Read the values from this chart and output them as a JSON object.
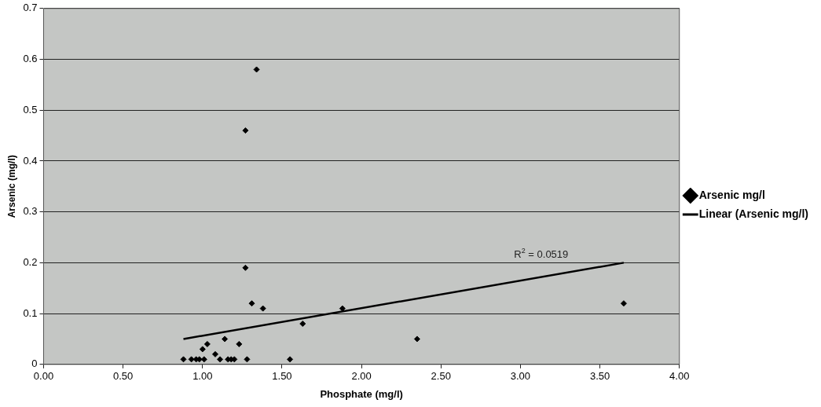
{
  "chart_data": {
    "type": "scatter",
    "xlabel": "Phosphate (mg/l)",
    "ylabel": "Arsenic (mg/l)",
    "xlim": [
      0,
      4
    ],
    "xticks": [
      {
        "value": 0,
        "label": "0.00"
      },
      {
        "value": 0.5,
        "label": "0.50"
      },
      {
        "value": 1,
        "label": "1.00"
      },
      {
        "value": 1.5,
        "label": "1.50"
      },
      {
        "value": 2,
        "label": "2.00"
      },
      {
        "value": 2.5,
        "label": "2.50"
      },
      {
        "value": 3,
        "label": "3.00"
      },
      {
        "value": 3.5,
        "label": "3.50"
      },
      {
        "value": 4,
        "label": "4.00"
      }
    ],
    "ylim": [
      0,
      0.7
    ],
    "yticks": [
      0,
      0.1,
      0.2,
      0.3,
      0.4,
      0.5,
      0.6,
      0.7
    ],
    "grid": "y",
    "legend": "right",
    "series": [
      {
        "name": "Arsenic mg/l",
        "type": "scatter",
        "marker": "diamond",
        "color": "#000000",
        "x": [
          0.88,
          0.93,
          0.96,
          0.98,
          1.01,
          1.0,
          1.03,
          1.08,
          1.11,
          1.14,
          1.16,
          1.18,
          1.2,
          1.23,
          1.28,
          1.27,
          1.27,
          1.31,
          1.38,
          1.34,
          1.63,
          1.55,
          1.88,
          2.35,
          3.65
        ],
        "values": [
          0.01,
          0.01,
          0.01,
          0.01,
          0.01,
          0.03,
          0.04,
          0.02,
          0.01,
          0.05,
          0.01,
          0.01,
          0.01,
          0.04,
          0.01,
          0.46,
          0.19,
          0.12,
          0.11,
          0.58,
          0.08,
          0.01,
          0.11,
          0.05,
          0.12
        ]
      },
      {
        "name": "Linear (Arsenic mg/l)",
        "type": "line",
        "marker": "none",
        "color": "#000000",
        "x": [
          0.88,
          3.65
        ],
        "values": [
          0.05,
          0.2
        ]
      }
    ],
    "annotations": [
      "R$^{2}$ = 0.0519"
    ]
  }
}
